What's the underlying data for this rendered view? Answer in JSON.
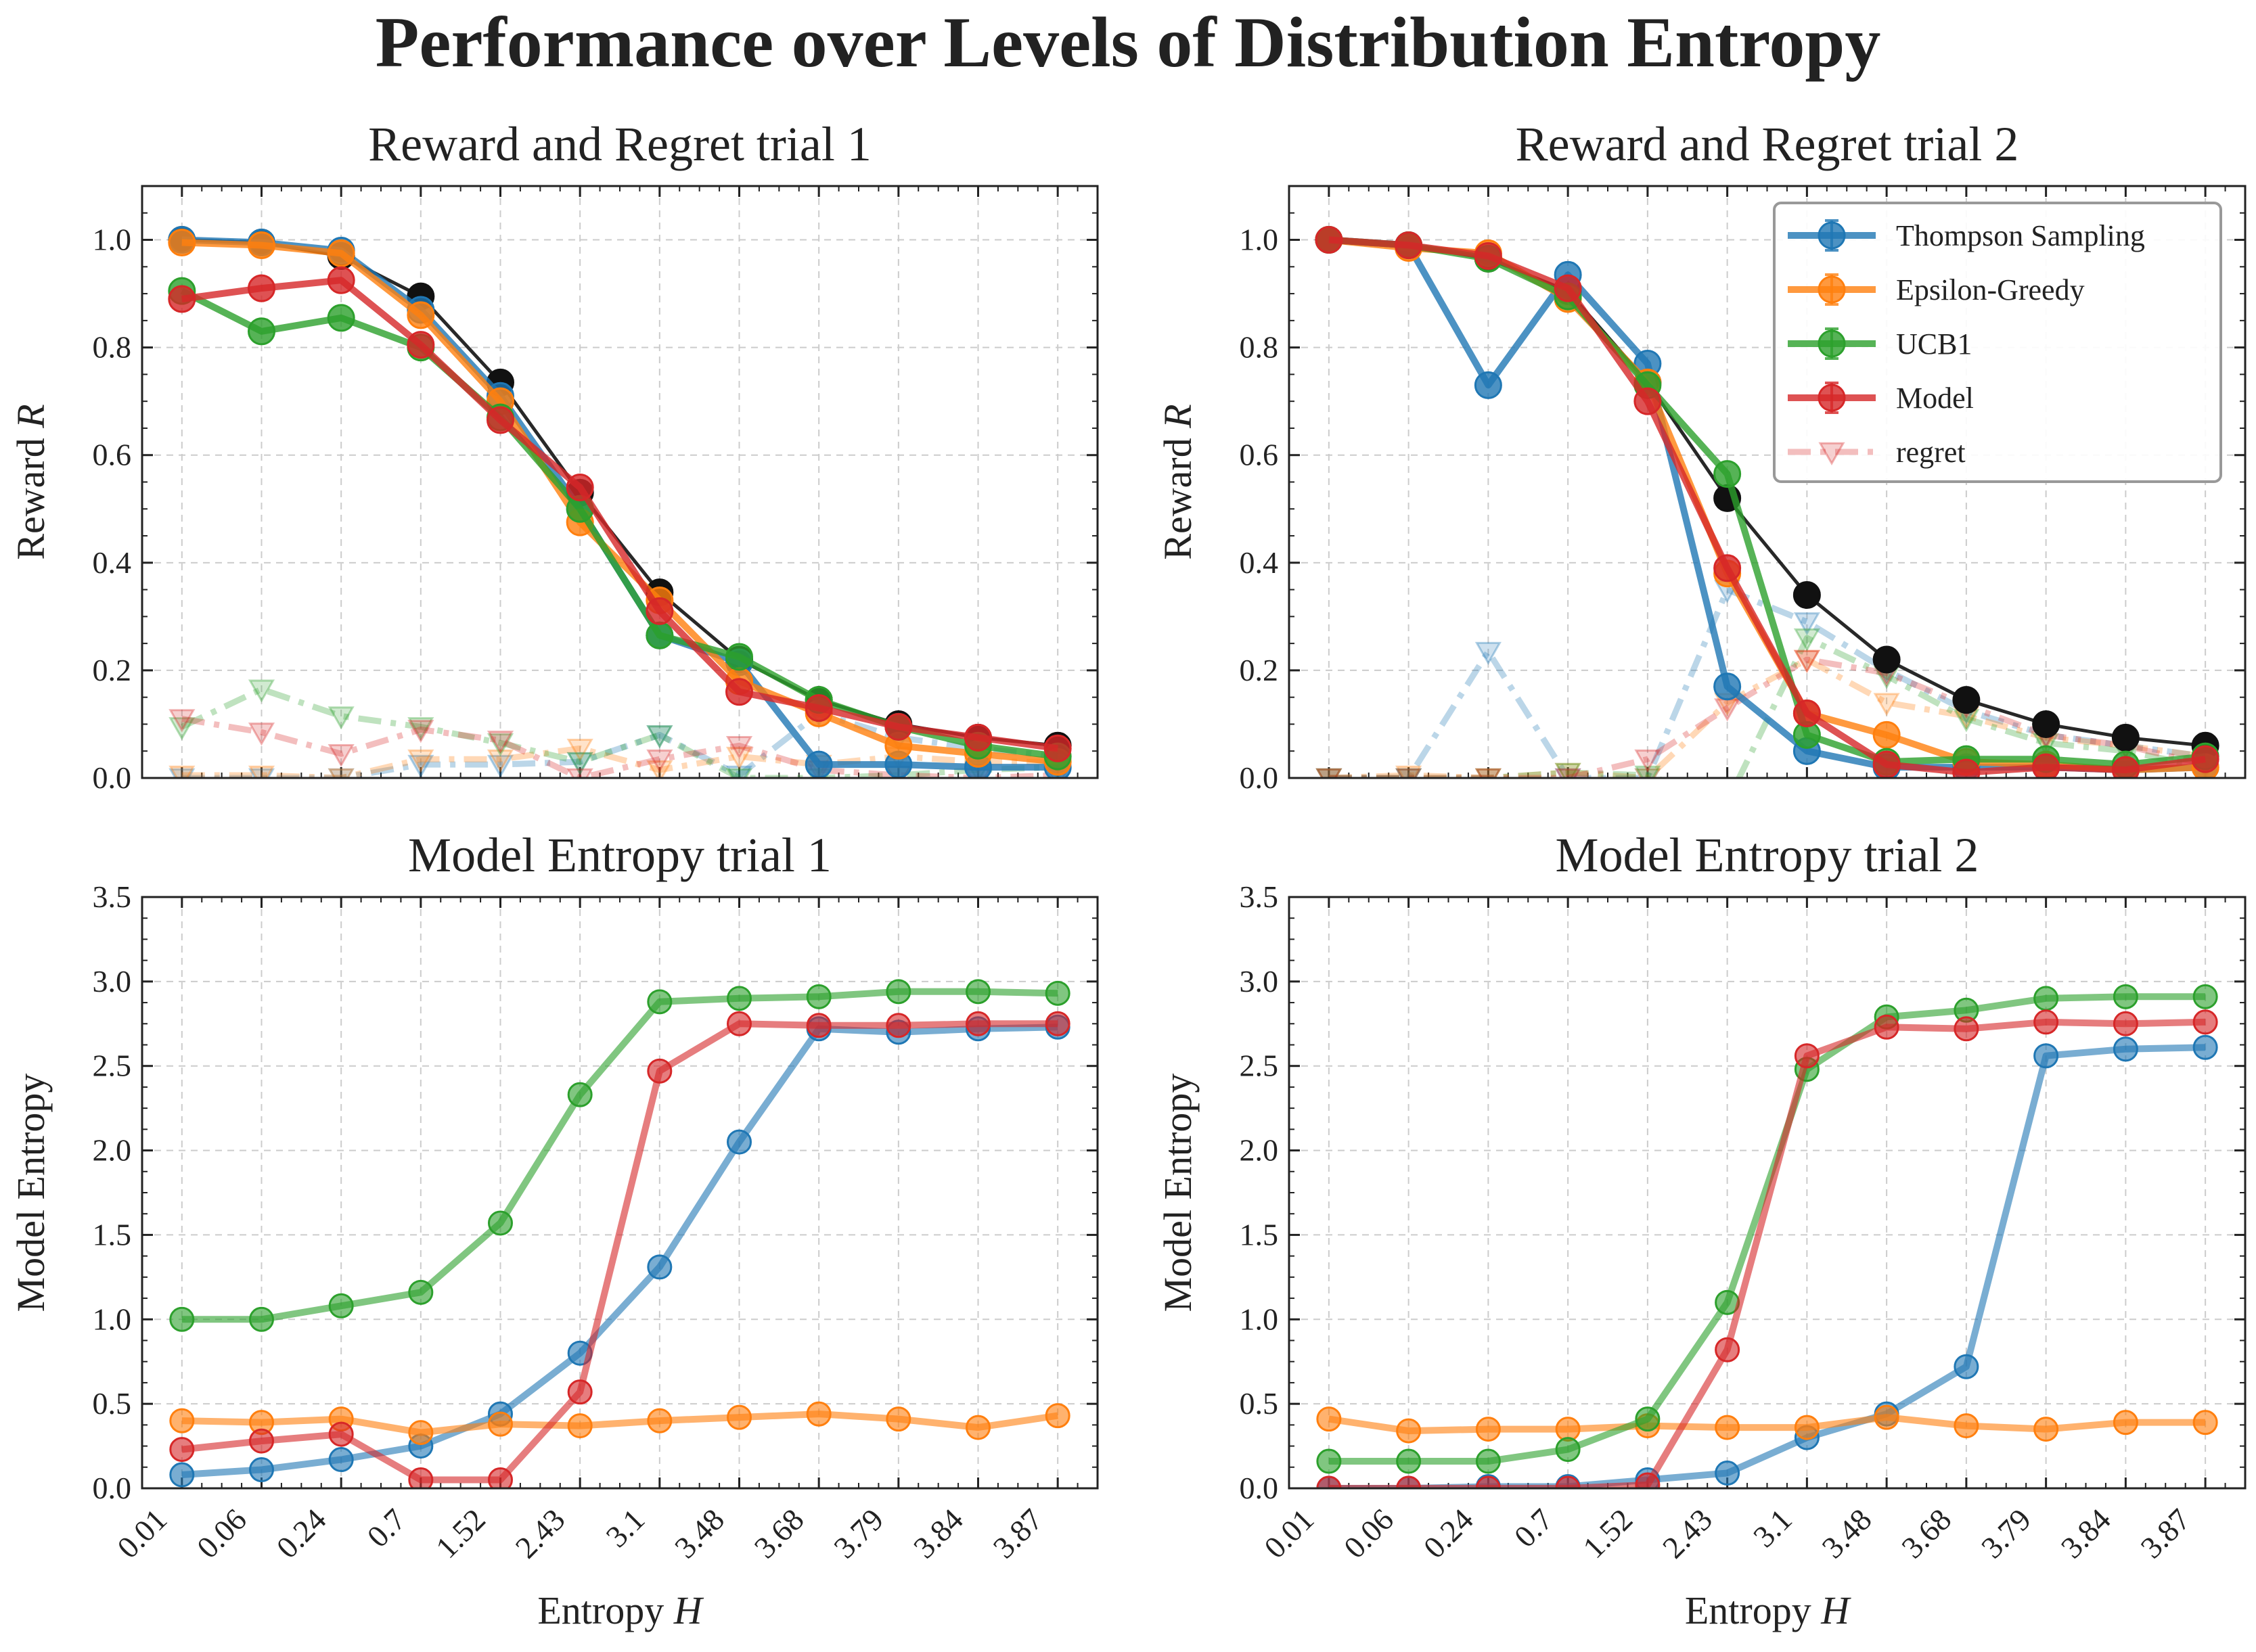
{
  "figure": {
    "title": "Performance over Levels of Distribution Entropy",
    "legend": {
      "location": "top-right of Reward and Regret trial 2",
      "entries": [
        "Thompson Sampling",
        "Epsilon-Greedy",
        "UCB1",
        "Model",
        "regret"
      ]
    },
    "colors": {
      "Thompson Sampling": "#1f77b4",
      "Epsilon-Greedy": "#ff7f0e",
      "UCB1": "#2ca02c",
      "Model": "#d62728",
      "optimal": "#111111"
    }
  },
  "chart_data": [
    {
      "type": "line",
      "title": "Reward and Regret trial 1",
      "ylabel": "Reward R",
      "xlabel": "",
      "ylim": [
        0,
        1.1
      ],
      "yticks": [
        "0.0",
        "0.2",
        "0.4",
        "0.6",
        "0.8",
        "1.0"
      ],
      "grid": true,
      "x_categories": [
        "0.01",
        "0.06",
        "0.24",
        "0.7",
        "1.52",
        "2.43",
        "3.1",
        "3.48",
        "3.68",
        "3.79",
        "3.84",
        "3.87"
      ],
      "x_tick_labels_shown": false,
      "series": [
        {
          "name": "",
          "key": "optimal",
          "style": "line",
          "values": [
            1.0,
            0.995,
            0.97,
            0.895,
            0.735,
            0.53,
            0.345,
            0.22,
            0.145,
            0.1,
            0.075,
            0.06
          ]
        },
        {
          "name": "Thompson Sampling",
          "style": "line",
          "values": [
            1.0,
            0.995,
            0.98,
            0.87,
            0.71,
            0.5,
            0.265,
            0.215,
            0.025,
            0.025,
            0.02,
            0.02
          ]
        },
        {
          "name": "Epsilon-Greedy",
          "style": "line",
          "values": [
            0.995,
            0.99,
            0.975,
            0.86,
            0.7,
            0.475,
            0.33,
            0.18,
            0.12,
            0.06,
            0.045,
            0.03
          ]
        },
        {
          "name": "UCB1",
          "style": "line",
          "values": [
            0.905,
            0.83,
            0.855,
            0.8,
            0.67,
            0.5,
            0.265,
            0.225,
            0.145,
            0.095,
            0.06,
            0.04
          ]
        },
        {
          "name": "Model",
          "style": "line",
          "values": [
            0.89,
            0.91,
            0.925,
            0.805,
            0.665,
            0.54,
            0.31,
            0.16,
            0.13,
            0.095,
            0.075,
            0.055
          ]
        },
        {
          "name": "regret",
          "key": "Thompson Sampling",
          "style": "regret",
          "values": [
            0.0,
            0.0,
            0.0,
            0.025,
            0.025,
            0.03,
            0.08,
            0.005,
            0.12,
            0.075,
            0.055,
            0.04
          ]
        },
        {
          "name": "regret",
          "key": "Epsilon-Greedy",
          "style": "regret",
          "values": [
            0.005,
            0.005,
            0.0,
            0.035,
            0.035,
            0.055,
            0.015,
            0.04,
            0.025,
            0.04,
            0.03,
            0.03
          ]
        },
        {
          "name": "regret",
          "key": "UCB1",
          "style": "regret",
          "values": [
            0.095,
            0.165,
            0.115,
            0.095,
            0.065,
            0.03,
            0.08,
            0.0,
            0.0,
            0.005,
            0.015,
            0.02
          ]
        },
        {
          "name": "regret",
          "key": "Model",
          "style": "regret",
          "values": [
            0.11,
            0.085,
            0.045,
            0.09,
            0.07,
            0.0,
            0.035,
            0.06,
            0.015,
            0.005,
            0.0,
            0.005
          ]
        }
      ]
    },
    {
      "type": "line",
      "title": "Reward and Regret trial 2",
      "ylabel": "Reward R",
      "xlabel": "",
      "ylim": [
        0,
        1.1
      ],
      "yticks": [
        "0.0",
        "0.2",
        "0.4",
        "0.6",
        "0.8",
        "1.0"
      ],
      "grid": true,
      "x_categories": [
        "0.01",
        "0.06",
        "0.24",
        "0.7",
        "1.52",
        "2.43",
        "3.1",
        "3.48",
        "3.68",
        "3.79",
        "3.84",
        "3.87"
      ],
      "x_tick_labels_shown": false,
      "series": [
        {
          "name": "",
          "key": "optimal",
          "style": "line",
          "values": [
            1.0,
            0.99,
            0.965,
            0.905,
            0.735,
            0.52,
            0.34,
            0.22,
            0.145,
            0.1,
            0.075,
            0.06
          ]
        },
        {
          "name": "Thompson Sampling",
          "style": "line",
          "values": [
            1.0,
            0.99,
            0.73,
            0.935,
            0.77,
            0.17,
            0.05,
            0.02,
            0.02,
            0.02,
            0.015,
            0.02
          ]
        },
        {
          "name": "Epsilon-Greedy",
          "style": "line",
          "values": [
            1.0,
            0.985,
            0.975,
            0.89,
            0.735,
            0.38,
            0.12,
            0.08,
            0.03,
            0.025,
            0.015,
            0.02
          ]
        },
        {
          "name": "UCB1",
          "style": "line",
          "values": [
            1.0,
            0.99,
            0.965,
            0.895,
            0.73,
            0.565,
            0.08,
            0.03,
            0.035,
            0.035,
            0.025,
            0.04
          ]
        },
        {
          "name": "Model",
          "style": "line",
          "values": [
            1.0,
            0.99,
            0.97,
            0.91,
            0.7,
            0.39,
            0.12,
            0.025,
            0.01,
            0.02,
            0.015,
            0.035
          ]
        },
        {
          "name": "regret",
          "key": "Thompson Sampling",
          "style": "regret",
          "values": [
            0.0,
            0.0,
            0.235,
            0.0,
            0.0,
            0.35,
            0.29,
            0.2,
            0.125,
            0.08,
            0.06,
            0.04
          ]
        },
        {
          "name": "regret",
          "key": "Epsilon-Greedy",
          "style": "regret",
          "values": [
            0.0,
            0.005,
            0.0,
            0.01,
            0.0,
            0.14,
            0.22,
            0.14,
            0.115,
            0.075,
            0.06,
            0.04
          ]
        },
        {
          "name": "regret",
          "key": "UCB1",
          "style": "regret",
          "values": [
            0.0,
            0.0,
            0.0,
            0.01,
            0.005,
            -0.045,
            0.26,
            0.19,
            0.11,
            0.065,
            0.05,
            0.02
          ]
        },
        {
          "name": "regret",
          "key": "Model",
          "style": "regret",
          "values": [
            0.0,
            0.0,
            0.0,
            0.0,
            0.035,
            0.13,
            0.22,
            0.195,
            0.135,
            0.08,
            0.06,
            0.025
          ]
        }
      ]
    },
    {
      "type": "line",
      "title": "Model Entropy trial 1",
      "ylabel": "Model Entropy",
      "xlabel": "Entropy H",
      "ylim": [
        0,
        3.5
      ],
      "yticks": [
        "0.0",
        "0.5",
        "1.0",
        "1.5",
        "2.0",
        "2.5",
        "3.0",
        "3.5"
      ],
      "grid": true,
      "x_categories": [
        "0.01",
        "0.06",
        "0.24",
        "0.7",
        "1.52",
        "2.43",
        "3.1",
        "3.48",
        "3.68",
        "3.79",
        "3.84",
        "3.87"
      ],
      "x_tick_labels_shown": true,
      "series": [
        {
          "name": "Thompson Sampling",
          "style": "entropy",
          "values": [
            0.08,
            0.11,
            0.17,
            0.25,
            0.44,
            0.8,
            1.31,
            2.05,
            2.72,
            2.7,
            2.72,
            2.73
          ]
        },
        {
          "name": "Epsilon-Greedy",
          "style": "entropy",
          "values": [
            0.4,
            0.39,
            0.41,
            0.33,
            0.38,
            0.37,
            0.4,
            0.42,
            0.44,
            0.41,
            0.36,
            0.43
          ]
        },
        {
          "name": "UCB1",
          "style": "entropy",
          "values": [
            1.0,
            1.0,
            1.08,
            1.16,
            1.57,
            2.33,
            2.88,
            2.9,
            2.91,
            2.94,
            2.94,
            2.93
          ]
        },
        {
          "name": "Model",
          "style": "entropy",
          "values": [
            0.23,
            0.28,
            0.32,
            0.05,
            0.05,
            0.57,
            2.47,
            2.75,
            2.74,
            2.74,
            2.75,
            2.75
          ]
        }
      ]
    },
    {
      "type": "line",
      "title": "Model Entropy trial 2",
      "ylabel": "Model Entropy",
      "xlabel": "Entropy H",
      "ylim": [
        0,
        3.5
      ],
      "yticks": [
        "0.0",
        "0.5",
        "1.0",
        "1.5",
        "2.0",
        "2.5",
        "3.0",
        "3.5"
      ],
      "grid": true,
      "x_categories": [
        "0.01",
        "0.06",
        "0.24",
        "0.7",
        "1.52",
        "2.43",
        "3.1",
        "3.48",
        "3.68",
        "3.79",
        "3.84",
        "3.87"
      ],
      "x_tick_labels_shown": true,
      "series": [
        {
          "name": "Thompson Sampling",
          "style": "entropy",
          "values": [
            0.0,
            0.0,
            0.01,
            0.01,
            0.05,
            0.09,
            0.3,
            0.44,
            0.72,
            2.56,
            2.6,
            2.61
          ]
        },
        {
          "name": "Epsilon-Greedy",
          "style": "entropy",
          "values": [
            0.41,
            0.34,
            0.35,
            0.35,
            0.37,
            0.36,
            0.36,
            0.42,
            0.37,
            0.35,
            0.39,
            0.39
          ]
        },
        {
          "name": "UCB1",
          "style": "entropy",
          "values": [
            0.16,
            0.16,
            0.16,
            0.23,
            0.41,
            1.1,
            2.48,
            2.79,
            2.83,
            2.9,
            2.91,
            2.91
          ]
        },
        {
          "name": "Model",
          "style": "entropy",
          "values": [
            0.0,
            0.0,
            0.0,
            0.0,
            0.02,
            0.82,
            2.56,
            2.73,
            2.72,
            2.76,
            2.75,
            2.76
          ]
        }
      ]
    }
  ]
}
